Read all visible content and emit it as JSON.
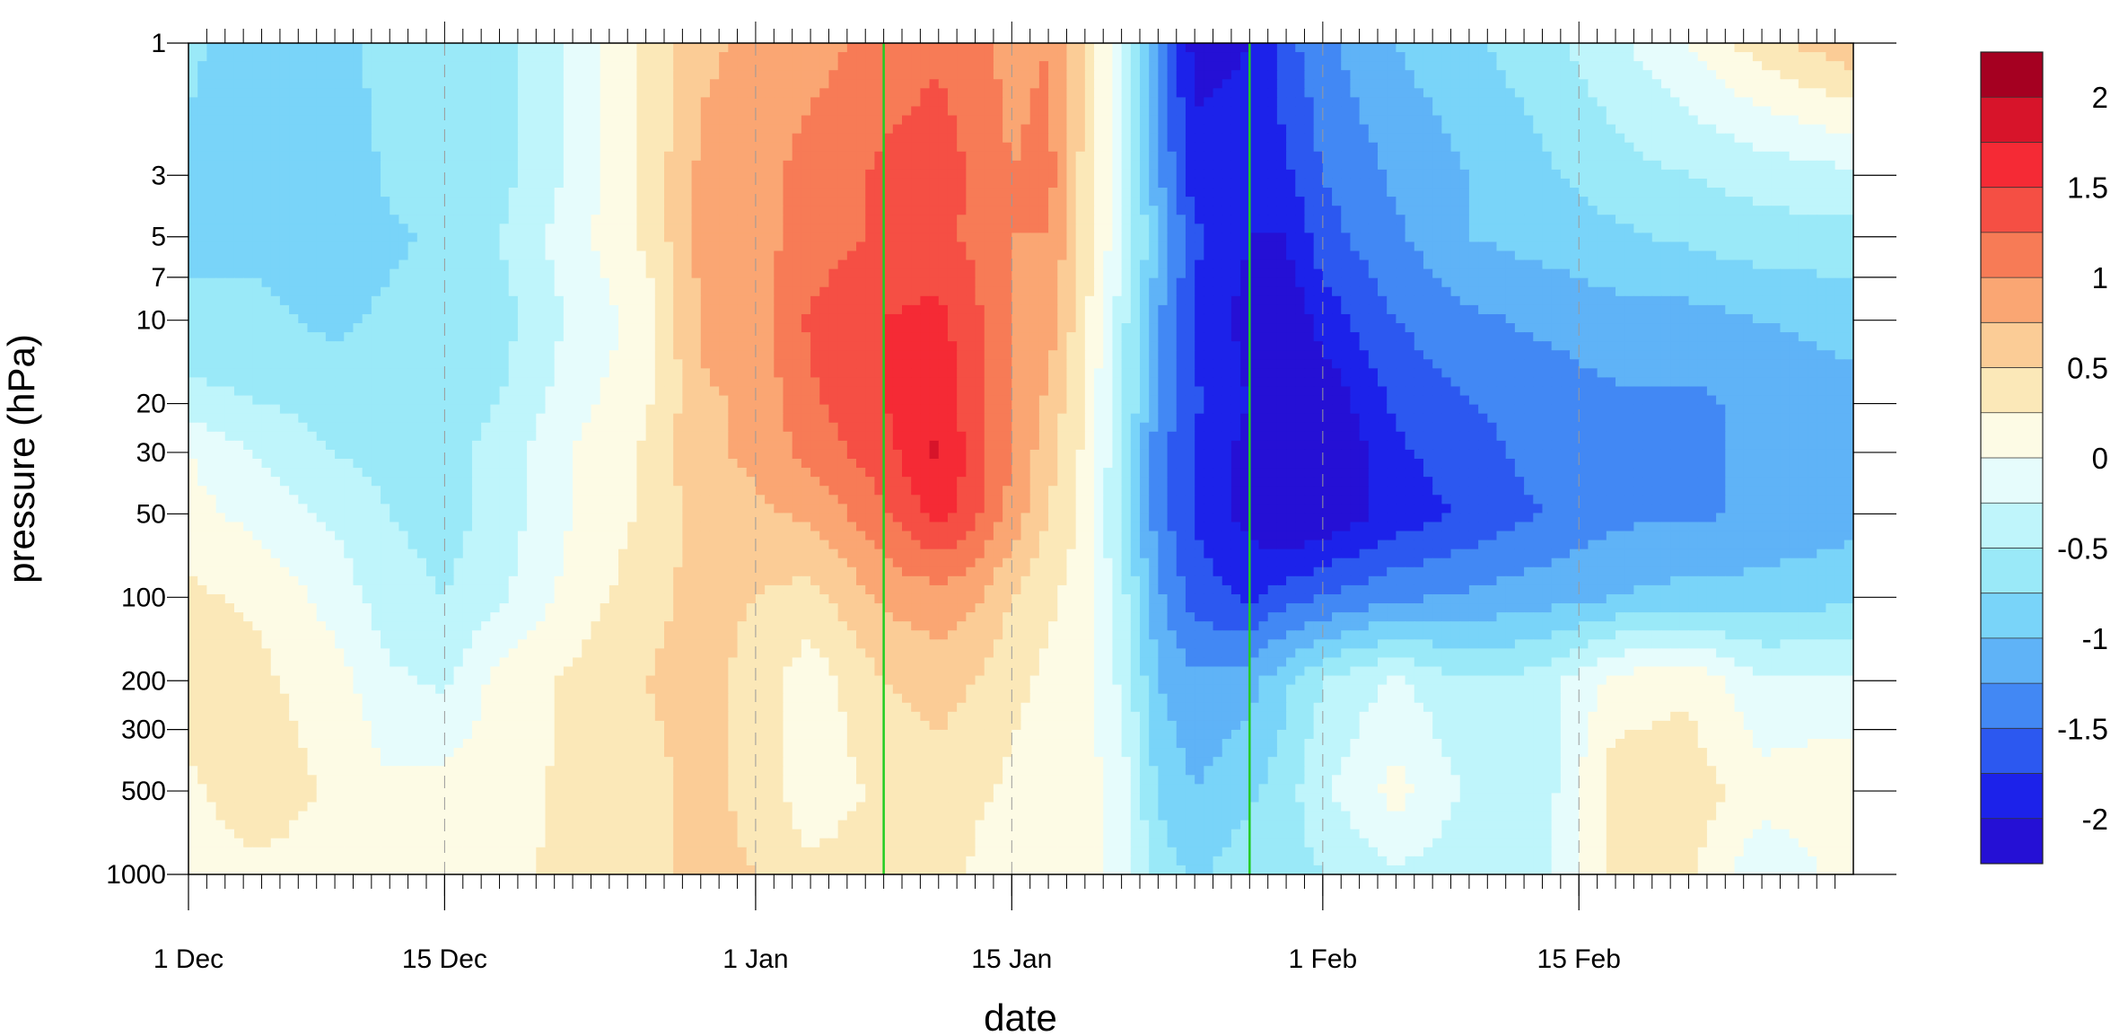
{
  "chart_data": {
    "type": "heatmap",
    "title": "",
    "xlabel": "date",
    "ylabel": "pressure (hPa)",
    "y_scale": "log",
    "y_reversed": true,
    "xlim_days": [
      0,
      91
    ],
    "ylim": [
      1000,
      1
    ],
    "x_ticks": [
      {
        "day": 0,
        "label": "1 Dec"
      },
      {
        "day": 14,
        "label": "15 Dec"
      },
      {
        "day": 31,
        "label": "1 Jan"
      },
      {
        "day": 45,
        "label": "15 Jan"
      },
      {
        "day": 62,
        "label": "1 Feb"
      },
      {
        "day": 76,
        "label": "15 Feb"
      }
    ],
    "y_ticks": [
      1,
      3,
      5,
      7,
      10,
      20,
      30,
      50,
      100,
      200,
      300,
      500,
      1000
    ],
    "vertical_markers_days": [
      38,
      58
    ],
    "vertical_marker_color": "#22cc22",
    "colorbar": {
      "labels": [
        "2",
        "1.5",
        "1",
        "0.5",
        "0",
        "-0.5",
        "-1",
        "-1.5",
        "-2"
      ],
      "colors": [
        "#a50021",
        "#d7142a",
        "#f52a35",
        "#f54f44",
        "#f77b56",
        "#faa673",
        "#fbcc96",
        "#fbe8b8",
        "#fdfbe5",
        "#e6fcfc",
        "#bff5fb",
        "#9ae9f8",
        "#79d4f9",
        "#5fb3f7",
        "#4288f4",
        "#2c58f0",
        "#1c22ea",
        "#2510d5"
      ]
    },
    "levels": [
      -2.25,
      -2,
      -1.75,
      -1.5,
      -1.25,
      -1,
      -0.75,
      -0.5,
      -0.25,
      0,
      0.25,
      0.5,
      0.75,
      1,
      1.25,
      1.5,
      1.75,
      2,
      2.25
    ],
    "grid_days": [
      0,
      4,
      8,
      11,
      14,
      17,
      21,
      25,
      28,
      31,
      34,
      38,
      41,
      43,
      45,
      47,
      49,
      51,
      53,
      55,
      58,
      60,
      62,
      66,
      70,
      74,
      78,
      82,
      86,
      91
    ],
    "grid_pressures": [
      1000,
      500,
      200,
      100,
      50,
      30,
      20,
      10,
      5,
      3,
      1
    ],
    "values": [
      [
        0.15,
        0.2,
        0.1,
        0.15,
        0.05,
        0.2,
        0.3,
        0.4,
        0.6,
        0.5,
        0.3,
        0.4,
        0.5,
        0.2,
        0.1,
        0.1,
        0.1,
        -0.1,
        -0.6,
        -0.8,
        -0.6,
        -0.6,
        -0.5,
        -0.3,
        -0.4,
        -0.3,
        0.3,
        0.3,
        -0.2,
        0.1
      ],
      [
        0.2,
        0.4,
        0.2,
        0.05,
        0.1,
        0.15,
        0.3,
        0.4,
        0.6,
        0.4,
        0.1,
        0.3,
        0.4,
        0.3,
        0.2,
        0.2,
        0.1,
        -0.1,
        -0.8,
        -1.0,
        -0.8,
        -0.6,
        -0.3,
        0.1,
        -0.3,
        -0.4,
        0.4,
        0.4,
        0.1,
        0.2
      ],
      [
        0.4,
        0.3,
        0.1,
        -0.2,
        -0.3,
        0.1,
        0.3,
        0.5,
        0.6,
        0.4,
        0.1,
        0.5,
        0.6,
        0.5,
        0.3,
        0.2,
        0.1,
        -0.3,
        -1.0,
        -1.2,
        -1.1,
        -0.8,
        -0.5,
        -0.2,
        -0.5,
        -0.4,
        0.1,
        0.2,
        -0.2,
        -0.2
      ],
      [
        0.3,
        0.2,
        -0.1,
        -0.4,
        -0.5,
        -0.3,
        0.1,
        0.4,
        0.6,
        0.5,
        0.4,
        0.8,
        0.9,
        0.8,
        0.5,
        0.3,
        0.1,
        -0.4,
        -1.2,
        -1.6,
        -1.8,
        -1.6,
        -1.5,
        -1.3,
        -1.2,
        -1.1,
        -1.0,
        -0.9,
        -0.9,
        -0.8
      ],
      [
        0.1,
        -0.1,
        -0.3,
        -0.5,
        -0.6,
        -0.4,
        0.0,
        0.3,
        0.6,
        0.7,
        0.8,
        1.2,
        1.6,
        1.3,
        0.9,
        0.5,
        0.2,
        -0.6,
        -1.4,
        -1.8,
        -2.1,
        -2.3,
        -2.2,
        -1.9,
        -1.7,
        -1.5,
        -1.3,
        -1.3,
        -1.2,
        -1.1
      ],
      [
        0.0,
        -0.3,
        -0.5,
        -0.6,
        -0.6,
        -0.4,
        0.0,
        0.3,
        0.7,
        0.8,
        1.1,
        1.4,
        1.8,
        1.4,
        1.0,
        0.6,
        0.2,
        -0.5,
        -1.4,
        -1.8,
        -2.1,
        -2.3,
        -2.3,
        -1.8,
        -1.6,
        -1.4,
        -1.3,
        -1.3,
        -1.2,
        -1.1
      ],
      [
        -0.4,
        -0.5,
        -0.6,
        -0.6,
        -0.6,
        -0.5,
        -0.1,
        0.2,
        0.7,
        0.8,
        1.2,
        1.5,
        1.7,
        1.3,
        1.0,
        0.7,
        0.2,
        -0.4,
        -1.3,
        -1.7,
        -2.0,
        -2.3,
        -2.2,
        -1.7,
        -1.5,
        -1.4,
        -1.3,
        -1.3,
        -1.2,
        -1.1
      ],
      [
        -0.7,
        -0.7,
        -0.8,
        -0.7,
        -0.6,
        -0.6,
        -0.2,
        0.1,
        0.8,
        0.9,
        1.3,
        1.5,
        1.6,
        1.3,
        1.0,
        0.9,
        0.3,
        -0.4,
        -1.2,
        -1.8,
        -2.1,
        -2.2,
        -1.9,
        -1.5,
        -1.3,
        -1.2,
        -1.1,
        -1.1,
        -1.0,
        -0.9
      ],
      [
        -0.8,
        -0.8,
        -0.9,
        -0.8,
        -0.7,
        -0.5,
        -0.1,
        0.3,
        0.8,
        0.9,
        1.1,
        1.3,
        1.3,
        1.2,
        1.0,
        1.0,
        0.4,
        -0.2,
        -1.0,
        -1.7,
        -2.0,
        -2.0,
        -1.6,
        -1.3,
        -1.0,
        -0.9,
        -0.8,
        -0.7,
        -0.6,
        -0.6
      ],
      [
        -0.8,
        -0.9,
        -1.0,
        -0.7,
        -0.6,
        -0.6,
        -0.2,
        0.3,
        0.8,
        0.9,
        1.1,
        1.3,
        1.4,
        1.2,
        1.0,
        1.1,
        0.4,
        -0.2,
        -1.2,
        -1.9,
        -1.9,
        -1.8,
        -1.5,
        -1.2,
        -1.0,
        -0.8,
        -0.6,
        -0.5,
        -0.4,
        -0.3
      ],
      [
        -0.7,
        -0.9,
        -1.0,
        -0.5,
        -0.5,
        -0.6,
        -0.2,
        0.3,
        0.7,
        0.8,
        0.9,
        1.1,
        1.2,
        1.1,
        0.9,
        1.0,
        0.5,
        -0.2,
        -1.4,
        -2.1,
        -2.0,
        -1.6,
        -1.3,
        -1.0,
        -0.8,
        -0.6,
        -0.3,
        0.0,
        0.4,
        0.7
      ]
    ]
  }
}
